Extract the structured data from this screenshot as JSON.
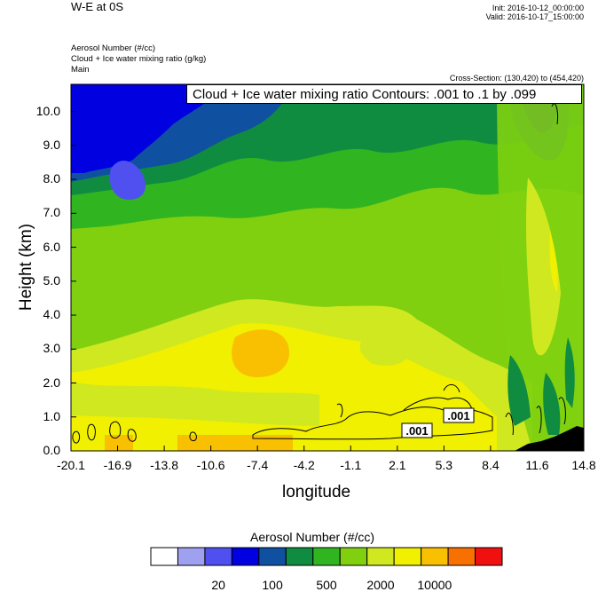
{
  "header": {
    "title": "W-E at 0S",
    "field1": "Aerosol Number   (#/cc)",
    "field2": "Cloud + Ice water mixing ratio   (g/kg)",
    "field3": "Main",
    "init": "Init: 2016-10-12_00:00:00",
    "valid": "Valid: 2016-10-17_15:00:00",
    "cross_section": "Cross-Section: (130,420) to (454,420)"
  },
  "contour_info": "Cloud + Ice water mixing ratio Contours: .001 to .1 by .099",
  "chart_data": {
    "type": "heatmap",
    "xlabel": "longitude",
    "ylabel": "Height (km)",
    "x_ticks": [
      "-20.1",
      "-16.9",
      "-13.8",
      "-10.6",
      "-7.4",
      "-4.2",
      "-1.1",
      "2.1",
      "5.3",
      "8.4",
      "11.6",
      "14.8"
    ],
    "y_ticks": [
      "0.0",
      "1.0",
      "2.0",
      "3.0",
      "4.0",
      "5.0",
      "6.0",
      "7.0",
      "8.0",
      "9.0",
      "10.0"
    ],
    "xlim": [
      -20.1,
      14.8
    ],
    "ylim": [
      0,
      10.8
    ],
    "contour_labels": [
      ".001",
      ".001"
    ],
    "colorbar": {
      "title": "Aerosol Number  (#/cc)",
      "colors": [
        "#ffffff",
        "#a0a0f0",
        "#5050f0",
        "#0000e0",
        "#1050a0",
        "#108c40",
        "#30b420",
        "#80d010",
        "#d0e820",
        "#f0f000",
        "#f8c000",
        "#f87000",
        "#f01010"
      ],
      "labels": [
        "20",
        "100",
        "500",
        "2000",
        "10000"
      ]
    }
  }
}
